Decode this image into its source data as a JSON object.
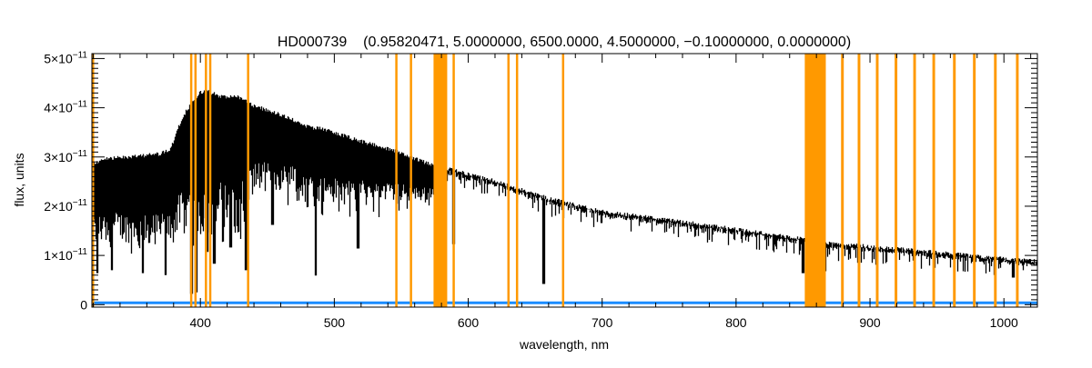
{
  "chart_data": {
    "type": "line",
    "title": "HD000739    (0.95820471, 5.0000000, 6500.0000, 4.5000000, −0.10000000, 0.0000000)",
    "xlabel": "wavelength, nm",
    "ylabel": "flux, units",
    "xlim": [
      319,
      1025
    ],
    "ylim": [
      -5e-13,
      5.1e-11
    ],
    "x_ticks": [
      400,
      500,
      600,
      700,
      800,
      900,
      1000
    ],
    "x_tick_labels": [
      "400",
      "500",
      "600",
      "700",
      "800",
      "900",
      "1000"
    ],
    "y_ticks": [
      0,
      1e-11,
      2e-11,
      3e-11,
      4e-11,
      5e-11
    ],
    "y_tick_labels": [
      {
        "mantissa": "0",
        "exponent": ""
      },
      {
        "mantissa": "1×10",
        "exponent": "−11"
      },
      {
        "mantissa": "2×10",
        "exponent": "−11"
      },
      {
        "mantissa": "3×10",
        "exponent": "−11"
      },
      {
        "mantissa": "4×10",
        "exponent": "−11"
      },
      {
        "mantissa": "5×10",
        "exponent": "−11"
      }
    ],
    "grid": false,
    "colors": {
      "spectrum": "#000000",
      "masked": "#ff9900",
      "error": "#1a8cff"
    },
    "flux_upper": [
      [
        319,
        2.9e-11
      ],
      [
        330,
        3e-11
      ],
      [
        350,
        3.05e-11
      ],
      [
        370,
        3.1e-11
      ],
      [
        378,
        3.2e-11
      ],
      [
        383,
        3.6e-11
      ],
      [
        390,
        4e-11
      ],
      [
        400,
        4.35e-11
      ],
      [
        405,
        4.38e-11
      ],
      [
        415,
        4.27e-11
      ],
      [
        430,
        4.25e-11
      ],
      [
        440,
        4.08e-11
      ],
      [
        460,
        3.9e-11
      ],
      [
        483,
        3.62e-11
      ],
      [
        490,
        3.62e-11
      ],
      [
        520,
        3.36e-11
      ],
      [
        550,
        3.12e-11
      ],
      [
        575,
        2.85e-11
      ],
      [
        586,
        2.79e-11
      ],
      [
        620,
        2.55e-11
      ],
      [
        650,
        2.28e-11
      ],
      [
        660,
        2.2e-11
      ],
      [
        700,
        1.93e-11
      ],
      [
        750,
        1.76e-11
      ],
      [
        803,
        1.56e-11
      ],
      [
        850,
        1.38e-11
      ],
      [
        870,
        1.29e-11
      ],
      [
        950,
        1.1e-11
      ],
      [
        1000,
        9.7e-12
      ],
      [
        1025,
        9.2e-12
      ]
    ],
    "flux_lower": [
      [
        319,
        1.2e-11
      ],
      [
        340,
        1.3e-11
      ],
      [
        360,
        1.15e-11
      ],
      [
        378,
        1.3e-11
      ],
      [
        385,
        1.5e-11
      ],
      [
        430,
        1.6e-11
      ],
      [
        440,
        2.3e-11
      ],
      [
        480,
        2.3e-11
      ],
      [
        490,
        2.1e-11
      ],
      [
        575,
        2.1e-11
      ],
      [
        586,
        2.5e-11
      ],
      [
        650,
        2.05e-11
      ],
      [
        700,
        1.75e-11
      ],
      [
        800,
        1.4e-11
      ],
      [
        850,
        1.25e-11
      ],
      [
        870,
        1.15e-11
      ],
      [
        1000,
        8.5e-12
      ],
      [
        1025,
        8.2e-12
      ]
    ],
    "absorption_lines": [
      [
        323,
        6.4e-12
      ],
      [
        334,
        7e-12
      ],
      [
        357,
        6.4e-12
      ],
      [
        374,
        6e-12
      ],
      [
        393.4,
        2.2e-12
      ],
      [
        396.8,
        2.5e-12
      ],
      [
        405,
        1.07e-11
      ],
      [
        410.2,
        8.3e-12
      ],
      [
        422.7,
        1.16e-11
      ],
      [
        434.1,
        7e-12
      ],
      [
        454,
        1.62e-11
      ],
      [
        486.1,
        5.9e-12
      ],
      [
        517.6,
        1.14e-11
      ],
      [
        589,
        1.23e-11
      ],
      [
        656.3,
        4.2e-12
      ],
      [
        850,
        6.4e-12
      ],
      [
        866.5,
        6.8e-12
      ],
      [
        1007,
        5.5e-12
      ]
    ],
    "error_level": 2e-13,
    "masked_regions": [
      [
        319,
        320
      ],
      [
        392.3,
        393.8
      ],
      [
        395.5,
        397.0
      ],
      [
        403.3,
        404.8
      ],
      [
        406.5,
        408.0
      ],
      [
        434.8,
        436.3
      ],
      [
        545.5,
        547.0
      ],
      [
        556.4,
        557.9
      ],
      [
        574.1,
        584.3
      ],
      [
        588.3,
        589.8
      ],
      [
        629.2,
        630.7
      ],
      [
        635.6,
        637.1
      ],
      [
        670.0,
        671.5
      ],
      [
        851.3,
        867.0
      ],
      [
        878.4,
        880.4
      ],
      [
        890.8,
        892.8
      ],
      [
        904.4,
        906.4
      ],
      [
        918.4,
        920.4
      ],
      [
        932.3,
        934.3
      ],
      [
        946.6,
        948.6
      ],
      [
        962.0,
        964.0
      ],
      [
        976.9,
        978.9
      ],
      [
        992.6,
        994.6
      ],
      [
        1009.0,
        1011.0
      ]
    ]
  }
}
